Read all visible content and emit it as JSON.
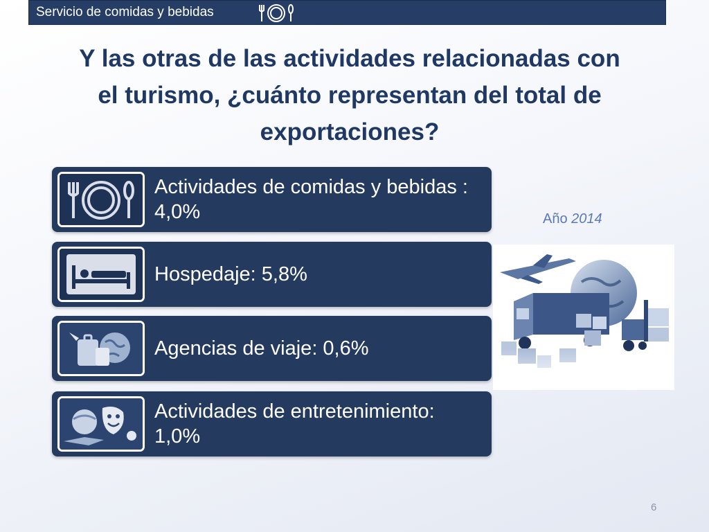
{
  "header": {
    "title": "Servicio de comidas y bebidas",
    "icon": "plate-cutlery-icon"
  },
  "title": {
    "line1": "Y las otras de las actividades relacionadas con",
    "line2": "el turismo, ¿cuánto representan del total de",
    "line3": "exportaciones?"
  },
  "items": [
    {
      "label": "Actividades de comidas y bebidas : 4,0%",
      "icon": "plate-cutlery-icon"
    },
    {
      "label": "Hospedaje: 5,8%",
      "icon": "bed-icon"
    },
    {
      "label": "Agencias de viaje: 0,6%",
      "icon": "travel-luggage-globe-icon"
    },
    {
      "label": "Actividades de entretenimiento: 1,0%",
      "icon": "entertainment-masks-icon"
    }
  ],
  "year": {
    "prefix": "Año",
    "value": "2014"
  },
  "illustration": {
    "icon": "export-logistics-illustration"
  },
  "page_number": "6",
  "colors": {
    "header_bg": "#263d66",
    "title": "#1f3864",
    "row_bg": "#243a5f",
    "year_text": "#5b79b5"
  }
}
